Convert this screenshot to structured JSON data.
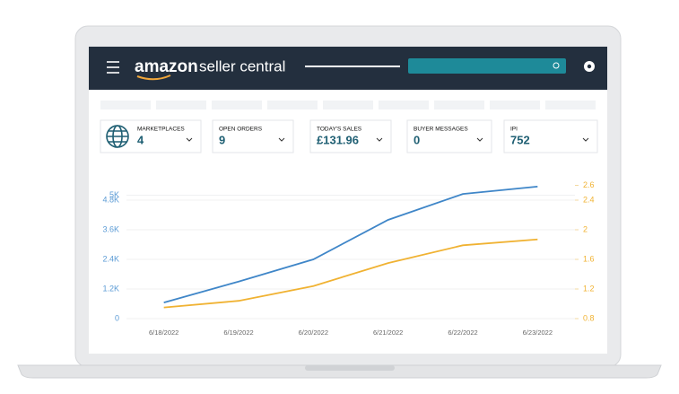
{
  "header": {
    "logo": "amazon",
    "product": "seller central"
  },
  "cards": [
    {
      "label": "MARKETPLACES",
      "value": "4"
    },
    {
      "label": "OPEN ORDERS",
      "value": "9"
    },
    {
      "label": "TODAY'S SALES",
      "value": "£131.96"
    },
    {
      "label": "BUYER MESSAGES",
      "value": "0"
    },
    {
      "label": "IPI",
      "value": "752"
    }
  ],
  "chart_data": {
    "type": "line",
    "categories": [
      "6/18/2022",
      "6/19/2022",
      "6/20/2022",
      "6/21/2022",
      "6/22/2022",
      "6/23/2022"
    ],
    "series": [
      {
        "color": "#3f86c8",
        "values": [
          650,
          1500,
          2400,
          4000,
          5050,
          5350
        ]
      },
      {
        "color": "#f0b232",
        "axis": "y2",
        "values": [
          0.95,
          1.04,
          1.24,
          1.55,
          1.79,
          1.87
        ]
      }
    ],
    "ylim": [
      0,
      6000
    ],
    "yticks": [
      0,
      {
        "value": 1200,
        "label": "1.2K"
      },
      {
        "value": 2400,
        "label": "2.4K"
      },
      {
        "value": 3600,
        "label": "3.6K"
      },
      {
        "value": 4800,
        "label": "4.8K"
      },
      {
        "value": 5000,
        "label": "5K"
      }
    ],
    "y2lim": [
      0.8,
      2.8
    ],
    "y2ticks": [
      0.8,
      1.2,
      1.6,
      2,
      2.4,
      2.6
    ],
    "grid": true
  }
}
